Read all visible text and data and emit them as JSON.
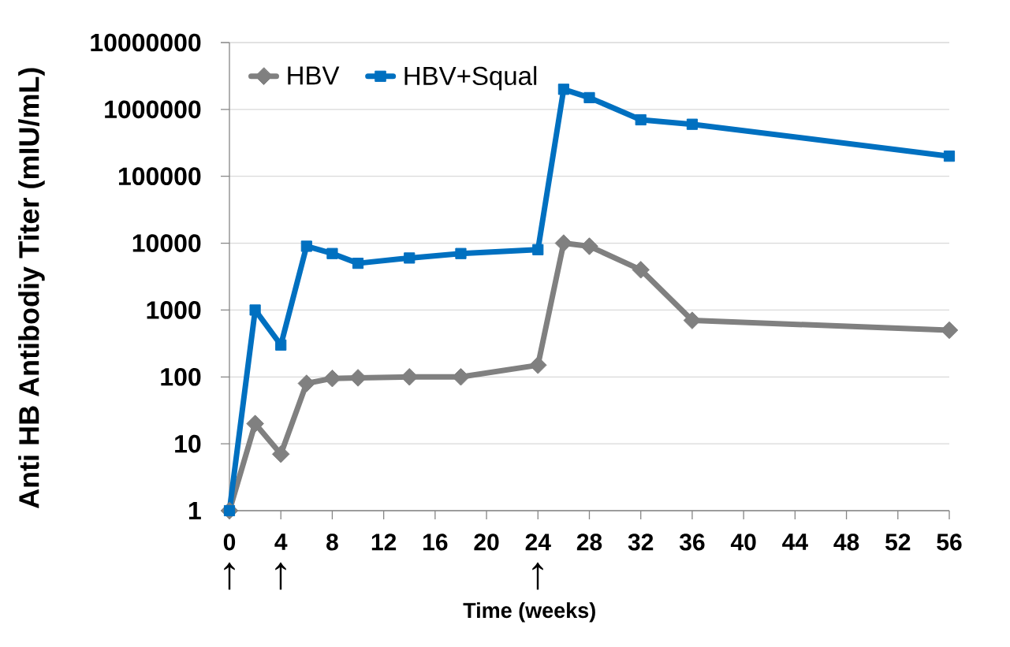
{
  "chart_data": {
    "type": "line",
    "x": [
      0,
      2,
      4,
      6,
      8,
      10,
      14,
      18,
      24,
      26,
      28,
      32,
      36,
      56
    ],
    "series": [
      {
        "name": "HBV",
        "color": "#808080",
        "marker": "diamond",
        "values": [
          1,
          20,
          7,
          80,
          95,
          97,
          100,
          100,
          150,
          10000,
          9000,
          4000,
          700,
          500
        ]
      },
      {
        "name": "HBV+Squal",
        "color": "#0070c0",
        "marker": "square",
        "values": [
          1,
          1000,
          300,
          9000,
          7000,
          5000,
          6000,
          7000,
          8000,
          2000000,
          1500000,
          700000,
          600000,
          200000
        ]
      }
    ],
    "xlabel": "Time (weeks)",
    "ylabel": "Anti HB Antibodiy Titer (mIU/mL)",
    "xlim": [
      0,
      56
    ],
    "xticks": [
      0,
      4,
      8,
      12,
      16,
      20,
      24,
      28,
      32,
      36,
      40,
      44,
      48,
      52,
      56
    ],
    "ylim": [
      1,
      10000000
    ],
    "yticks": [
      1,
      10,
      100,
      1000,
      10000,
      100000,
      1000000,
      10000000
    ],
    "log": "y",
    "grid": "y",
    "legend": "top left",
    "line_style": "solid",
    "annotations": [
      "↑",
      "↑",
      "↑"
    ]
  }
}
